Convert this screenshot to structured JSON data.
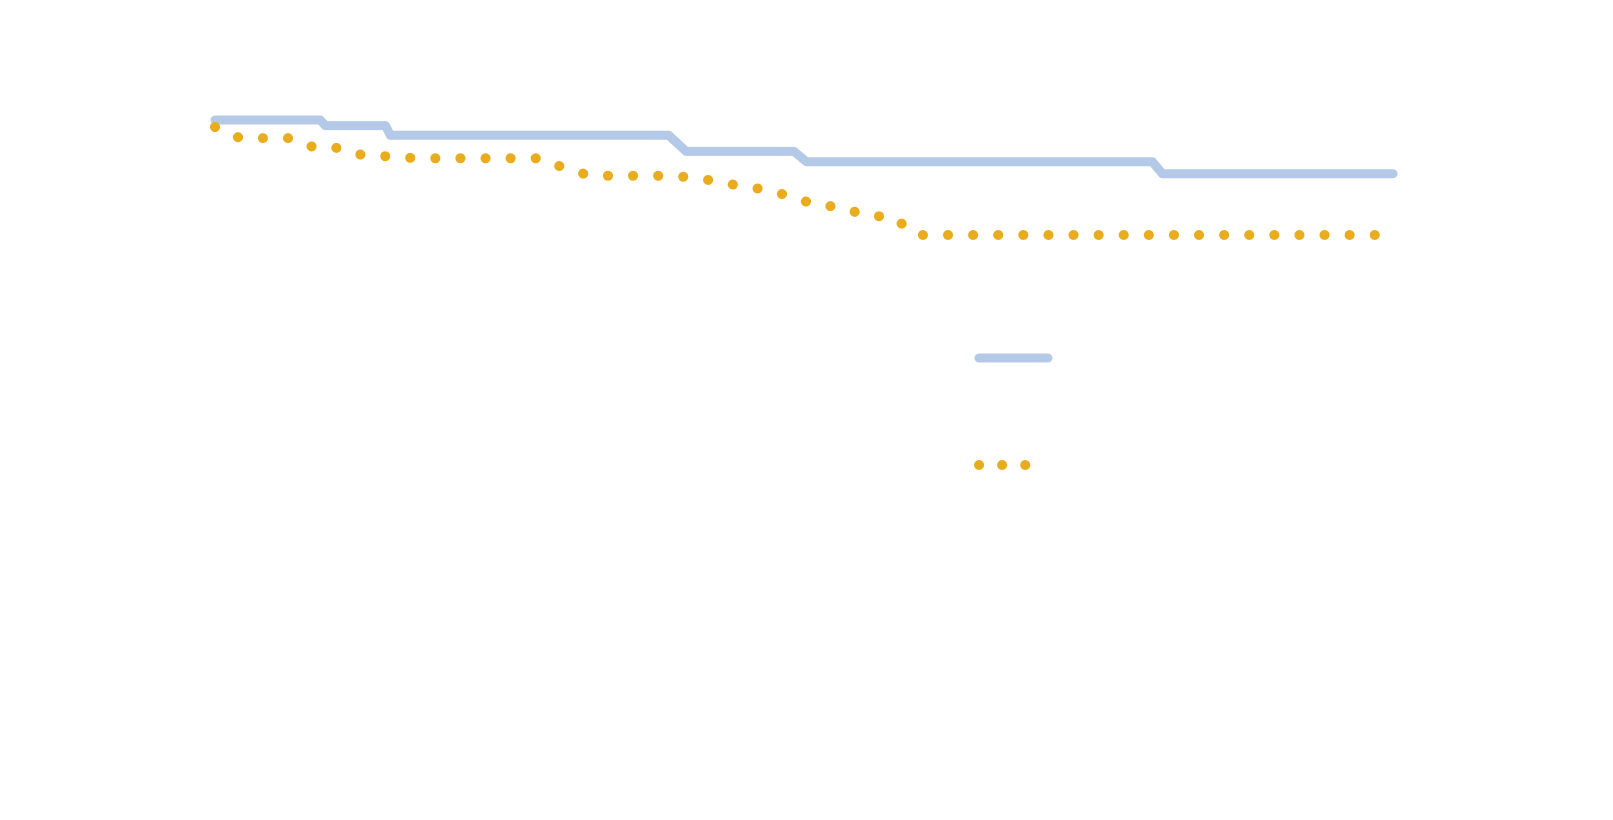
{
  "chart_data": {
    "type": "line",
    "title": "",
    "xlabel": "",
    "ylabel": "",
    "xlim": [
      0,
      47
    ],
    "ylim": [
      0,
      1
    ],
    "grid": false,
    "legend": "right",
    "series": [
      {
        "color": "#b4c8e8",
        "style": "solid",
        "x": [
          0,
          4.2,
          4.4,
          6.8,
          7.0,
          18.1,
          18.8,
          23.1,
          23.6,
          37.4,
          37.8,
          47
        ],
        "y": [
          1.0,
          1.0,
          0.992,
          0.992,
          0.978,
          0.978,
          0.955,
          0.955,
          0.94,
          0.94,
          0.923,
          0.923
        ]
      },
      {
        "color": "#e8ac1c",
        "style": "dotted",
        "x": [
          0,
          1,
          2,
          3,
          4,
          5,
          6,
          7,
          8,
          9,
          10,
          11,
          12,
          13,
          14,
          15,
          16,
          17,
          18,
          19,
          20,
          21,
          22,
          23,
          24,
          25,
          26,
          27,
          28,
          29,
          30,
          31,
          32,
          33,
          34,
          35,
          36,
          37,
          38,
          39,
          40,
          41,
          42,
          43,
          44,
          45,
          46,
          47
        ],
        "y": [
          0.99,
          0.974,
          0.974,
          0.974,
          0.96,
          0.96,
          0.948,
          0.948,
          0.945,
          0.945,
          0.945,
          0.945,
          0.945,
          0.945,
          0.93,
          0.92,
          0.92,
          0.92,
          0.92,
          0.918,
          0.912,
          0.905,
          0.9,
          0.89,
          0.878,
          0.875,
          0.862,
          0.862,
          0.835,
          0.835,
          0.835,
          0.835,
          0.835,
          0.835,
          0.835,
          0.835,
          0.835,
          0.835,
          0.835,
          0.835,
          0.835,
          0.835,
          0.835,
          0.835,
          0.835,
          0.835,
          0.835,
          0.835
        ]
      }
    ]
  }
}
